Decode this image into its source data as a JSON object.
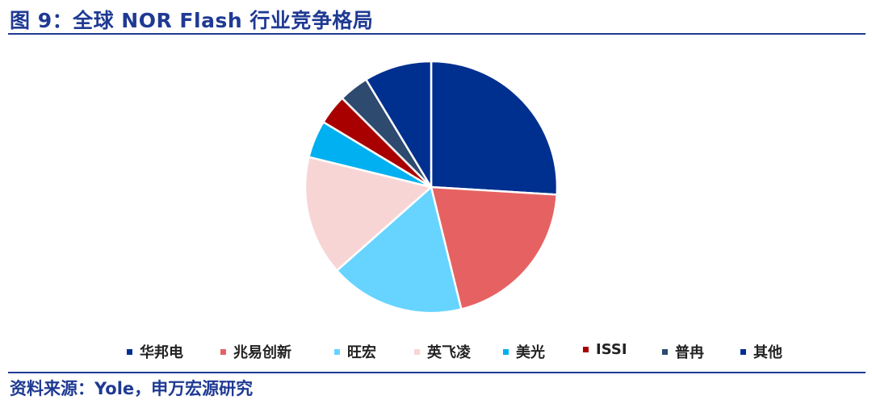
{
  "header": {
    "title": "图 9：全球 NOR Flash 行业竞争格局"
  },
  "chart_data": {
    "type": "pie",
    "title": "",
    "legend_position": "bottom",
    "slices": [
      {
        "name": "华邦电",
        "value": 27,
        "color": "#00308f"
      },
      {
        "name": "兆易创新",
        "value": 21,
        "color": "#e66262"
      },
      {
        "name": "旺宏",
        "value": 18,
        "color": "#66d4ff"
      },
      {
        "name": "英飞凌",
        "value": 16,
        "color": "#f8d5d5"
      },
      {
        "name": "美光",
        "value": 5,
        "color": "#00b0f0"
      },
      {
        "name": "ISSI",
        "value": 4,
        "color": "#a80000"
      },
      {
        "name": "普冉",
        "value": 4,
        "color": "#2e4a6e"
      },
      {
        "name": "其他",
        "value": 9,
        "color": "#00308f"
      }
    ]
  },
  "footer": {
    "source": "资料来源：Yole，申万宏源研究"
  }
}
